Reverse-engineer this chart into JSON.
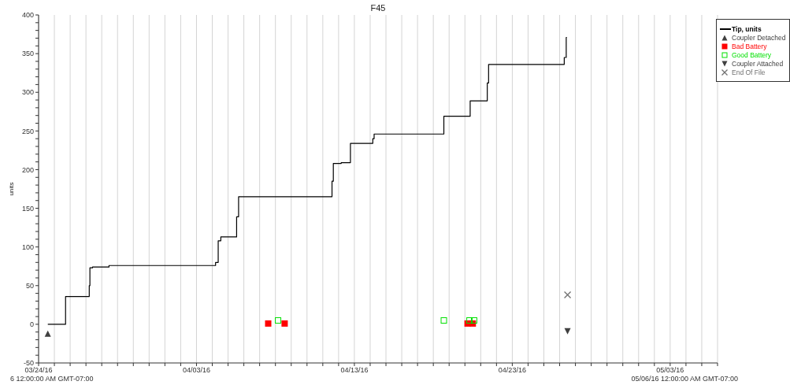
{
  "chart_data": {
    "type": "step",
    "title": "F45",
    "ylabel": "units",
    "annotations": [
      "6 12:00:00 AM GMT-07:00",
      "05/06/16 12:00:00 AM GMT-07:00"
    ],
    "xlim": [
      "--03-24",
      "--05-06"
    ],
    "xticks": [
      {
        "value": "--03-24",
        "label": "03/24/16"
      },
      {
        "value": "--03-25",
        "label": null
      },
      {
        "value": "--03-26",
        "label": null
      },
      {
        "value": "--03-27",
        "label": null
      },
      {
        "value": "--03-28",
        "label": null
      },
      {
        "value": "--03-29",
        "label": null
      },
      {
        "value": "--03-30",
        "label": null
      },
      {
        "value": "--03-31",
        "label": null
      },
      {
        "value": "--04-01",
        "label": null
      },
      {
        "value": "--04-02",
        "label": null
      },
      {
        "value": "--04-03",
        "label": "04/03/16"
      },
      {
        "value": "--04-04",
        "label": null
      },
      {
        "value": "--04-05",
        "label": null
      },
      {
        "value": "--04-06",
        "label": null
      },
      {
        "value": "--04-07",
        "label": null
      },
      {
        "value": "--04-08",
        "label": null
      },
      {
        "value": "--04-09",
        "label": null
      },
      {
        "value": "--04-10",
        "label": null
      },
      {
        "value": "--04-11",
        "label": null
      },
      {
        "value": "--04-12",
        "label": null
      },
      {
        "value": "--04-13",
        "label": "04/13/16"
      },
      {
        "value": "--04-14",
        "label": null
      },
      {
        "value": "--04-15",
        "label": null
      },
      {
        "value": "--04-16",
        "label": null
      },
      {
        "value": "--04-17",
        "label": null
      },
      {
        "value": "--04-18",
        "label": null
      },
      {
        "value": "--04-19",
        "label": null
      },
      {
        "value": "--04-20",
        "label": null
      },
      {
        "value": "--04-21",
        "label": null
      },
      {
        "value": "--04-22",
        "label": null
      },
      {
        "value": "--04-23",
        "label": "04/23/16"
      },
      {
        "value": "--04-24",
        "label": null
      },
      {
        "value": "--04-25",
        "label": null
      },
      {
        "value": "--04-26",
        "label": null
      },
      {
        "value": "--04-27",
        "label": null
      },
      {
        "value": "--04-28",
        "label": null
      },
      {
        "value": "--04-29",
        "label": null
      },
      {
        "value": "--04-30",
        "label": null
      },
      {
        "value": "--05-01",
        "label": null
      },
      {
        "value": "--05-02",
        "label": null
      },
      {
        "value": "--05-03",
        "label": "05/03/16"
      },
      {
        "value": "--05-04",
        "label": null
      },
      {
        "value": "--05-05",
        "label": null
      },
      {
        "value": "--05-06",
        "label": null
      }
    ],
    "ylim": [
      -50,
      400
    ],
    "yticks": [
      -50,
      {
        "value": -40,
        "label": null
      },
      {
        "value": -30,
        "label": null
      },
      {
        "value": -20,
        "label": null
      },
      {
        "value": -10,
        "label": null
      },
      0,
      {
        "value": 10,
        "label": null
      },
      {
        "value": 20,
        "label": null
      },
      {
        "value": 30,
        "label": null
      },
      {
        "value": 40,
        "label": null
      },
      50,
      {
        "value": 60,
        "label": null
      },
      {
        "value": 70,
        "label": null
      },
      {
        "value": 80,
        "label": null
      },
      {
        "value": 90,
        "label": null
      },
      100,
      {
        "value": 110,
        "label": null
      },
      {
        "value": 120,
        "label": null
      },
      {
        "value": 130,
        "label": null
      },
      {
        "value": 140,
        "label": null
      },
      150,
      {
        "value": 160,
        "label": null
      },
      {
        "value": 170,
        "label": null
      },
      {
        "value": 180,
        "label": null
      },
      {
        "value": 190,
        "label": null
      },
      200,
      {
        "value": 210,
        "label": null
      },
      {
        "value": 220,
        "label": null
      },
      {
        "value": 230,
        "label": null
      },
      {
        "value": 240,
        "label": null
      },
      250,
      {
        "value": 260,
        "label": null
      },
      {
        "value": 270,
        "label": null
      },
      {
        "value": 280,
        "label": null
      },
      {
        "value": 290,
        "label": null
      },
      300,
      {
        "value": 310,
        "label": null
      },
      {
        "value": 320,
        "label": null
      },
      {
        "value": 330,
        "label": null
      },
      {
        "value": 340,
        "label": null
      },
      350,
      {
        "value": 360,
        "label": null
      },
      {
        "value": 370,
        "label": null
      },
      {
        "value": 380,
        "label": null
      },
      {
        "value": 390,
        "label": null
      },
      400
    ],
    "grid": "x",
    "legend": "top right",
    "series": [
      {
        "name": "Tip, units",
        "color": "#000000",
        "marker": "none",
        "x": [
          "--03-24T14:00",
          "--03-25T17:00",
          "--03-27T05:00",
          "--03-27T06:00",
          "--03-27T10:00",
          "--03-28T11:00",
          "--04-04T05:00",
          "--04-04T09:00",
          "--04-04T13:00",
          "--04-05T13:00",
          "--04-05T16:00",
          "--04-11T14:00",
          "--04-11T16:00",
          "--04-12T04:00",
          "--04-12T18:00",
          "--04-14T04:00",
          "--04-14T06:00",
          "--04-18T16:00",
          "--04-20T08:00",
          "--04-21T10:00",
          "--04-21T12:00",
          "--04-26T07:00",
          "--04-26T10:00",
          "--04-26T11:00"
        ],
        "values": [
          0,
          36,
          50,
          73,
          74,
          76,
          80,
          108,
          113,
          139,
          165,
          185,
          208,
          209,
          234,
          240,
          246,
          269,
          289,
          312,
          336,
          345,
          371,
          371
        ]
      },
      {
        "name": "Coupler Detached",
        "type": "scatter",
        "color": "#404040",
        "marker": "triangle",
        "x": [
          "--03-24T14:00"
        ],
        "values": [
          -12
        ]
      },
      {
        "name": "Bad Battery",
        "type": "scatter",
        "color": "#ff0000",
        "marker": "square",
        "x": [
          "--04-07T13:00",
          "--04-08T14:00",
          "--04-20T04:00",
          "--04-20T12:00"
        ],
        "values": [
          1,
          1,
          1,
          1
        ]
      },
      {
        "name": "Good Battery",
        "type": "scatter",
        "color": "#00e000",
        "marker": "square",
        "x": [
          "--04-08T04:00",
          "--04-18T16:00",
          "--04-20T07:00",
          "--04-20T14:00"
        ],
        "values": [
          5,
          5,
          5,
          5
        ]
      },
      {
        "name": "Coupler Attached",
        "type": "scatter",
        "color": "#404040",
        "marker": "triangle",
        "x": [
          "--04-26T12:00"
        ],
        "values": [
          -9
        ]
      },
      {
        "name": "End Of File",
        "type": "scatter",
        "color": "#707070",
        "marker": "cross",
        "x": [
          "--04-26T12:00"
        ],
        "values": [
          38
        ]
      }
    ]
  }
}
